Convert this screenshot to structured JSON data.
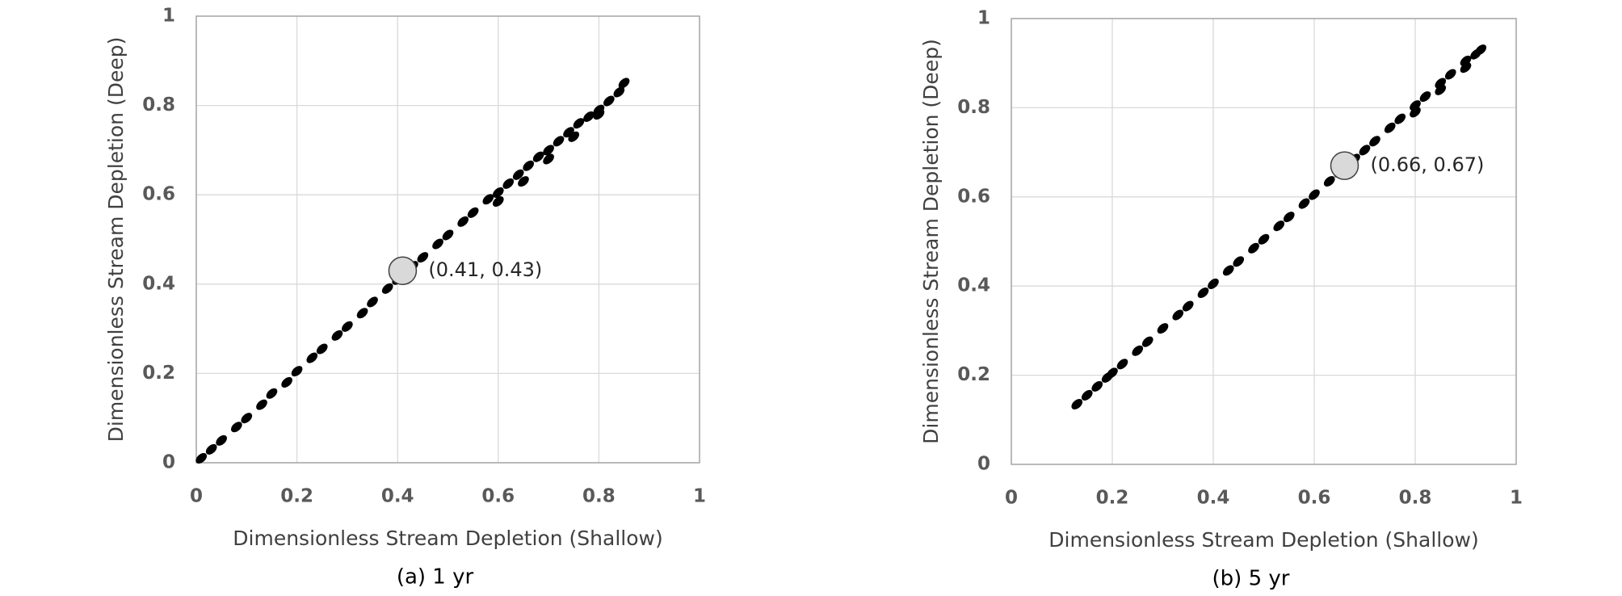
{
  "chart_data": [
    {
      "type": "scatter",
      "caption": "(a) 1 yr",
      "xlabel": "Dimensionless Stream Depletion (Shallow)",
      "ylabel": "Dimensionless Stream Depletion (Deep)",
      "xlim": [
        0,
        1
      ],
      "ylim": [
        0,
        1
      ],
      "xticks": [
        0,
        0.2,
        0.4,
        0.6,
        0.8,
        1
      ],
      "yticks": [
        0,
        0.2,
        0.4,
        0.6,
        0.8,
        1
      ],
      "grid": true,
      "series": [
        {
          "color": "#000000",
          "x": [
            0.01,
            0.03,
            0.05,
            0.08,
            0.1,
            0.13,
            0.15,
            0.18,
            0.2,
            0.23,
            0.25,
            0.28,
            0.3,
            0.33,
            0.35,
            0.38,
            0.4,
            0.43,
            0.45,
            0.48,
            0.5,
            0.53,
            0.55,
            0.58,
            0.6,
            0.62,
            0.64,
            0.66,
            0.68,
            0.7,
            0.72,
            0.74,
            0.76,
            0.78,
            0.8,
            0.82,
            0.84,
            0.85,
            0.6,
            0.65,
            0.7,
            0.75,
            0.8
          ],
          "y": [
            0.01,
            0.03,
            0.05,
            0.08,
            0.1,
            0.13,
            0.155,
            0.18,
            0.205,
            0.235,
            0.255,
            0.285,
            0.305,
            0.335,
            0.36,
            0.39,
            0.41,
            0.44,
            0.46,
            0.49,
            0.51,
            0.54,
            0.56,
            0.59,
            0.605,
            0.625,
            0.645,
            0.665,
            0.685,
            0.7,
            0.72,
            0.74,
            0.76,
            0.775,
            0.79,
            0.81,
            0.83,
            0.85,
            0.585,
            0.63,
            0.68,
            0.73,
            0.78
          ]
        }
      ],
      "highlight": {
        "x": 0.41,
        "y": 0.43,
        "label": "(0.41, 0.43)"
      }
    },
    {
      "type": "scatter",
      "caption": "(b) 5 yr",
      "xlabel": "Dimensionless Stream Depletion (Shallow)",
      "ylabel": "Dimensionless Stream Depletion (Deep)",
      "xlim": [
        0,
        1
      ],
      "ylim": [
        0,
        1
      ],
      "xticks": [
        0,
        0.2,
        0.4,
        0.6,
        0.8,
        1
      ],
      "yticks": [
        0,
        0.2,
        0.4,
        0.6,
        0.8,
        1
      ],
      "grid": true,
      "series": [
        {
          "color": "#000000",
          "x": [
            0.13,
            0.15,
            0.17,
            0.19,
            0.2,
            0.22,
            0.25,
            0.27,
            0.3,
            0.33,
            0.35,
            0.38,
            0.4,
            0.43,
            0.45,
            0.48,
            0.5,
            0.53,
            0.55,
            0.58,
            0.6,
            0.63,
            0.65,
            0.68,
            0.7,
            0.72,
            0.75,
            0.77,
            0.8,
            0.82,
            0.85,
            0.87,
            0.9,
            0.92,
            0.93,
            0.8,
            0.85,
            0.9
          ],
          "y": [
            0.135,
            0.155,
            0.175,
            0.195,
            0.205,
            0.225,
            0.255,
            0.275,
            0.305,
            0.335,
            0.355,
            0.385,
            0.405,
            0.435,
            0.455,
            0.485,
            0.505,
            0.535,
            0.555,
            0.585,
            0.605,
            0.635,
            0.655,
            0.685,
            0.705,
            0.725,
            0.755,
            0.775,
            0.805,
            0.825,
            0.855,
            0.875,
            0.905,
            0.92,
            0.93,
            0.79,
            0.84,
            0.89
          ]
        }
      ],
      "highlight": {
        "x": 0.66,
        "y": 0.67,
        "label": "(0.66, 0.67)"
      }
    }
  ]
}
